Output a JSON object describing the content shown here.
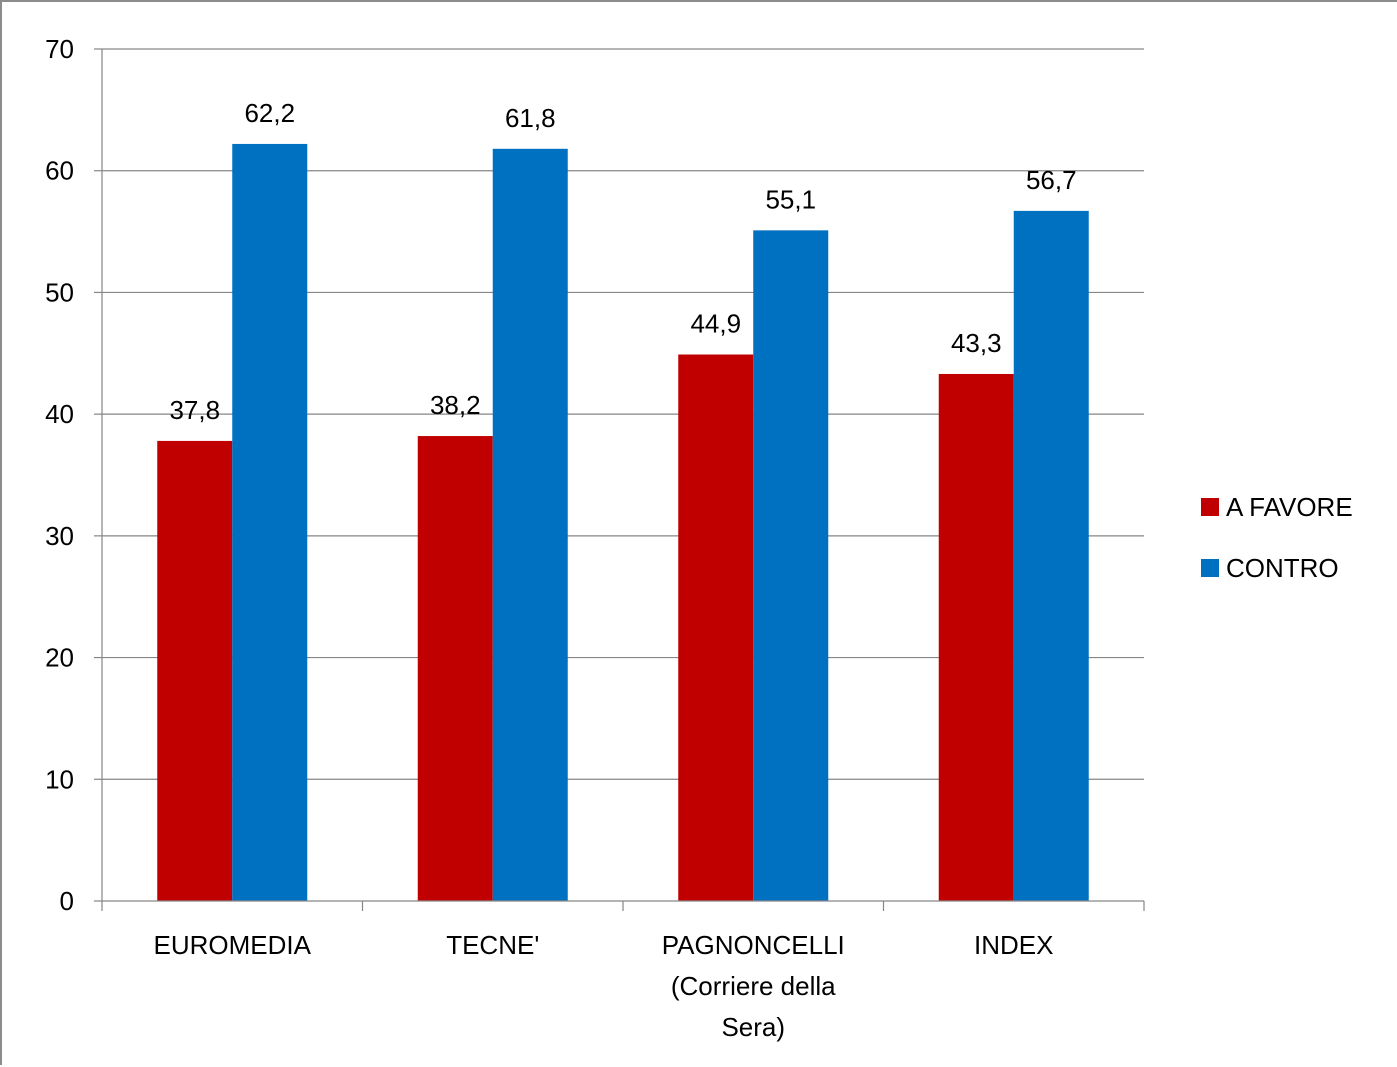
{
  "chart_data": {
    "type": "bar",
    "title": "",
    "xlabel": "",
    "ylabel": "",
    "ylim": [
      0,
      70
    ],
    "yticks": [
      0,
      10,
      20,
      30,
      40,
      50,
      60,
      70
    ],
    "grid": true,
    "legend_position": "right",
    "categories": [
      [
        "EUROMEDIA"
      ],
      [
        "TECNE'"
      ],
      [
        "PAGNONCELLI",
        "(Corriere della",
        "Sera)"
      ],
      [
        "INDEX"
      ]
    ],
    "series": [
      {
        "name": "A FAVORE",
        "color": "#C00000",
        "values": [
          37.8,
          38.2,
          44.9,
          43.3
        ],
        "labels": [
          "37,8",
          "38,2",
          "44,9",
          "43,3"
        ]
      },
      {
        "name": "CONTRO",
        "color": "#0070C0",
        "values": [
          62.2,
          61.8,
          55.1,
          56.7
        ],
        "labels": [
          "62,2",
          "61,8",
          "55,1",
          "56,7"
        ]
      }
    ]
  }
}
